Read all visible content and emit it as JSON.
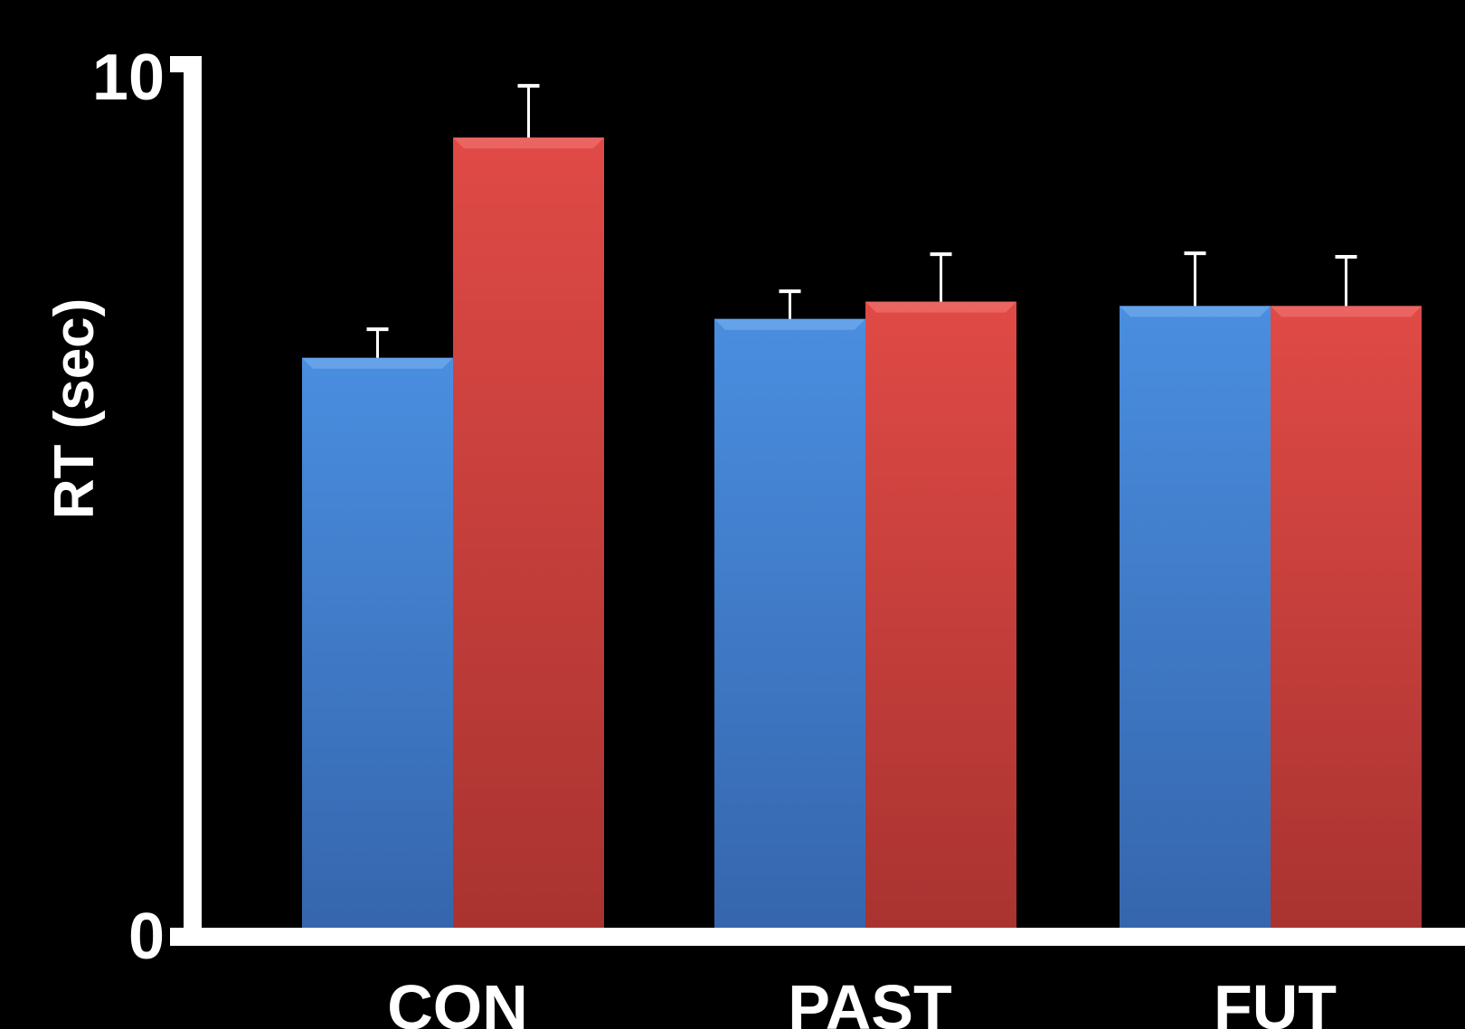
{
  "chart_data": {
    "type": "bar",
    "title": "",
    "xlabel": "",
    "ylabel": "RT (sec)",
    "ylim": [
      0,
      10
    ],
    "yticks": [
      "0",
      "10"
    ],
    "grid": false,
    "legend": "none",
    "categories": [
      "CON",
      "PAST",
      "FUT"
    ],
    "series": [
      {
        "color": "#3f7fd0",
        "values": [
          6.6,
          7.05,
          7.2
        ],
        "errors": [
          0.33,
          0.32,
          0.61
        ]
      },
      {
        "color": "#d64440",
        "values": [
          9.15,
          7.25,
          7.2
        ],
        "errors": [
          0.6,
          0.55,
          0.57
        ]
      }
    ]
  }
}
